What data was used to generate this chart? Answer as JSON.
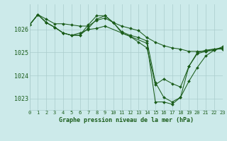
{
  "background_color": "#cceaea",
  "grid_color": "#aacccc",
  "line_color": "#1a5c1a",
  "marker_color": "#1a5c1a",
  "xlabel": "Graphe pression niveau de la mer (hPa)",
  "xlim": [
    0,
    23
  ],
  "ylim": [
    1022.5,
    1027.1
  ],
  "yticks": [
    1023,
    1024,
    1025,
    1026
  ],
  "xticks": [
    0,
    1,
    2,
    3,
    4,
    5,
    6,
    7,
    8,
    9,
    10,
    11,
    12,
    13,
    14,
    15,
    16,
    17,
    18,
    19,
    20,
    21,
    22,
    23
  ],
  "series": [
    {
      "x": [
        0,
        1,
        2,
        3,
        4,
        5,
        6,
        7,
        8,
        9,
        10,
        11,
        12,
        13,
        14,
        15,
        16,
        17,
        18,
        19,
        20,
        21,
        22,
        23
      ],
      "y": [
        1026.2,
        1026.65,
        1026.45,
        1026.25,
        1026.25,
        1026.2,
        1026.15,
        1026.15,
        1026.4,
        1026.5,
        1026.3,
        1026.15,
        1026.05,
        1025.95,
        1025.65,
        1025.45,
        1025.3,
        1025.2,
        1025.15,
        1025.05,
        1025.05,
        1025.05,
        1025.1,
        1025.2
      ]
    },
    {
      "x": [
        0,
        1,
        2,
        3,
        4,
        5,
        6,
        7,
        8,
        9,
        14,
        15,
        16,
        17,
        18,
        19,
        20,
        21,
        22,
        23
      ],
      "y": [
        1026.2,
        1026.65,
        1026.3,
        1026.1,
        1025.85,
        1025.75,
        1025.85,
        1026.0,
        1026.05,
        1026.15,
        1025.4,
        1022.85,
        1022.85,
        1022.75,
        1023.05,
        1023.75,
        1024.35,
        1024.85,
        1025.1,
        1025.25
      ]
    },
    {
      "x": [
        0,
        1,
        2,
        3,
        4,
        5,
        6,
        7,
        8,
        9,
        10,
        11,
        12,
        13,
        14,
        15,
        16,
        17,
        18,
        19,
        20,
        21,
        22,
        23
      ],
      "y": [
        1026.2,
        1026.65,
        1026.3,
        1026.1,
        1025.85,
        1025.75,
        1025.75,
        1026.05,
        1026.45,
        1026.6,
        1026.3,
        1025.85,
        1025.7,
        1025.45,
        1025.2,
        1023.6,
        1023.85,
        1023.65,
        1023.5,
        1024.4,
        1024.95,
        1025.05,
        1025.15,
        1025.2
      ]
    },
    {
      "x": [
        0,
        1,
        2,
        3,
        4,
        5,
        6,
        7,
        8,
        9,
        10,
        11,
        12,
        13,
        14,
        15,
        16,
        17,
        18,
        19,
        20,
        21,
        22,
        23
      ],
      "y": [
        1026.2,
        1026.65,
        1026.3,
        1026.1,
        1025.85,
        1025.75,
        1025.75,
        1026.2,
        1026.6,
        1026.6,
        1026.3,
        1025.9,
        1025.75,
        1025.65,
        1025.5,
        1023.7,
        1023.05,
        1022.85,
        1023.05,
        1024.4,
        1025.0,
        1025.1,
        1025.15,
        1025.15
      ]
    }
  ]
}
